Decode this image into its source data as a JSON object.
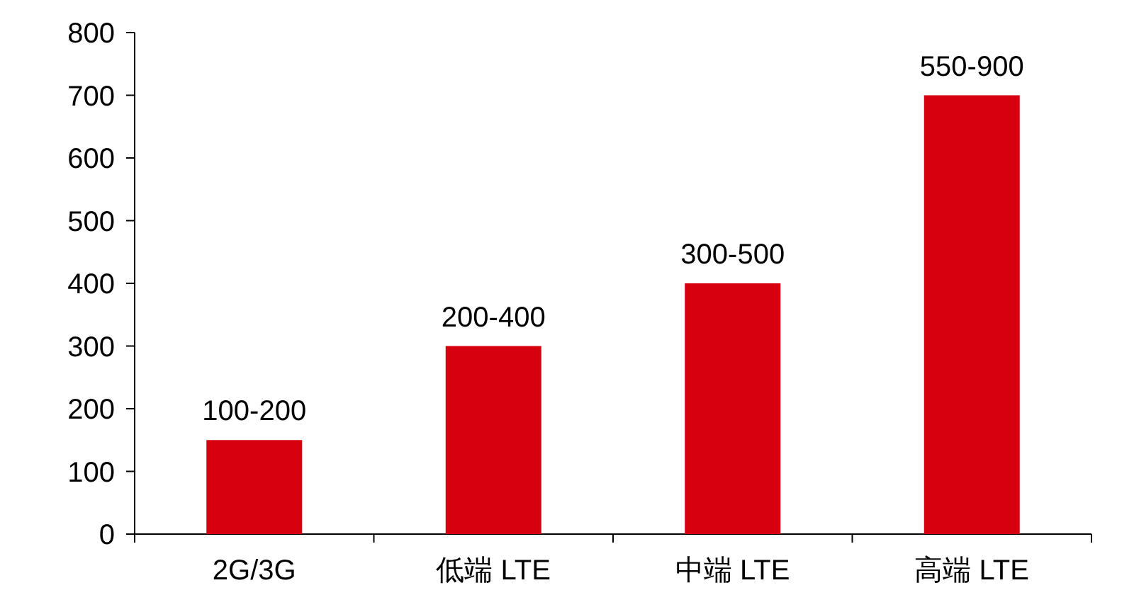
{
  "chart_data": {
    "type": "bar",
    "categories": [
      "2G/3G",
      "低端 LTE",
      "中端 LTE",
      "高端 LTE"
    ],
    "values": [
      150,
      300,
      400,
      700
    ],
    "value_labels": [
      "100-200",
      "200-400",
      "300-500",
      "550-900"
    ],
    "color": "#d7000f",
    "ylim": [
      0,
      800
    ],
    "yticks": [
      0,
      100,
      200,
      300,
      400,
      500,
      600,
      700,
      800
    ]
  }
}
